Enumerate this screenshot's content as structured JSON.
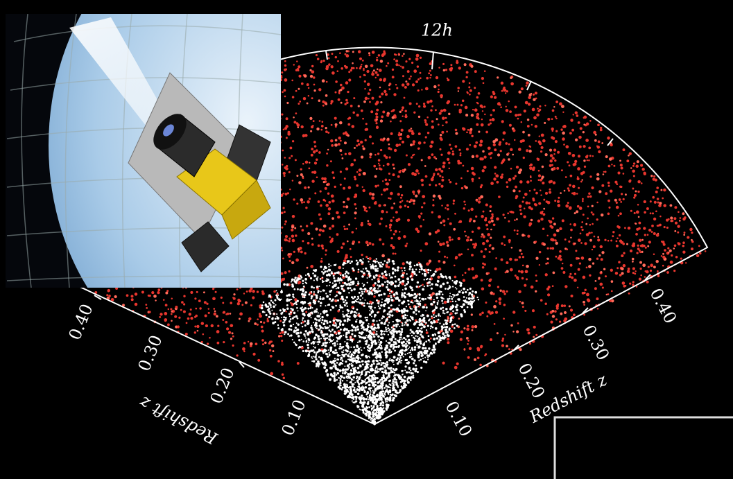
{
  "labels": {
    "hour": "12h",
    "left_ticks": [
      "0.10",
      "0.20",
      "0.30",
      "0.40"
    ],
    "right_ticks": [
      "0.10",
      "0.20",
      "0.30",
      "0.40"
    ],
    "left_axis": "Redshift z",
    "right_axis": "Redshift z"
  }
}
